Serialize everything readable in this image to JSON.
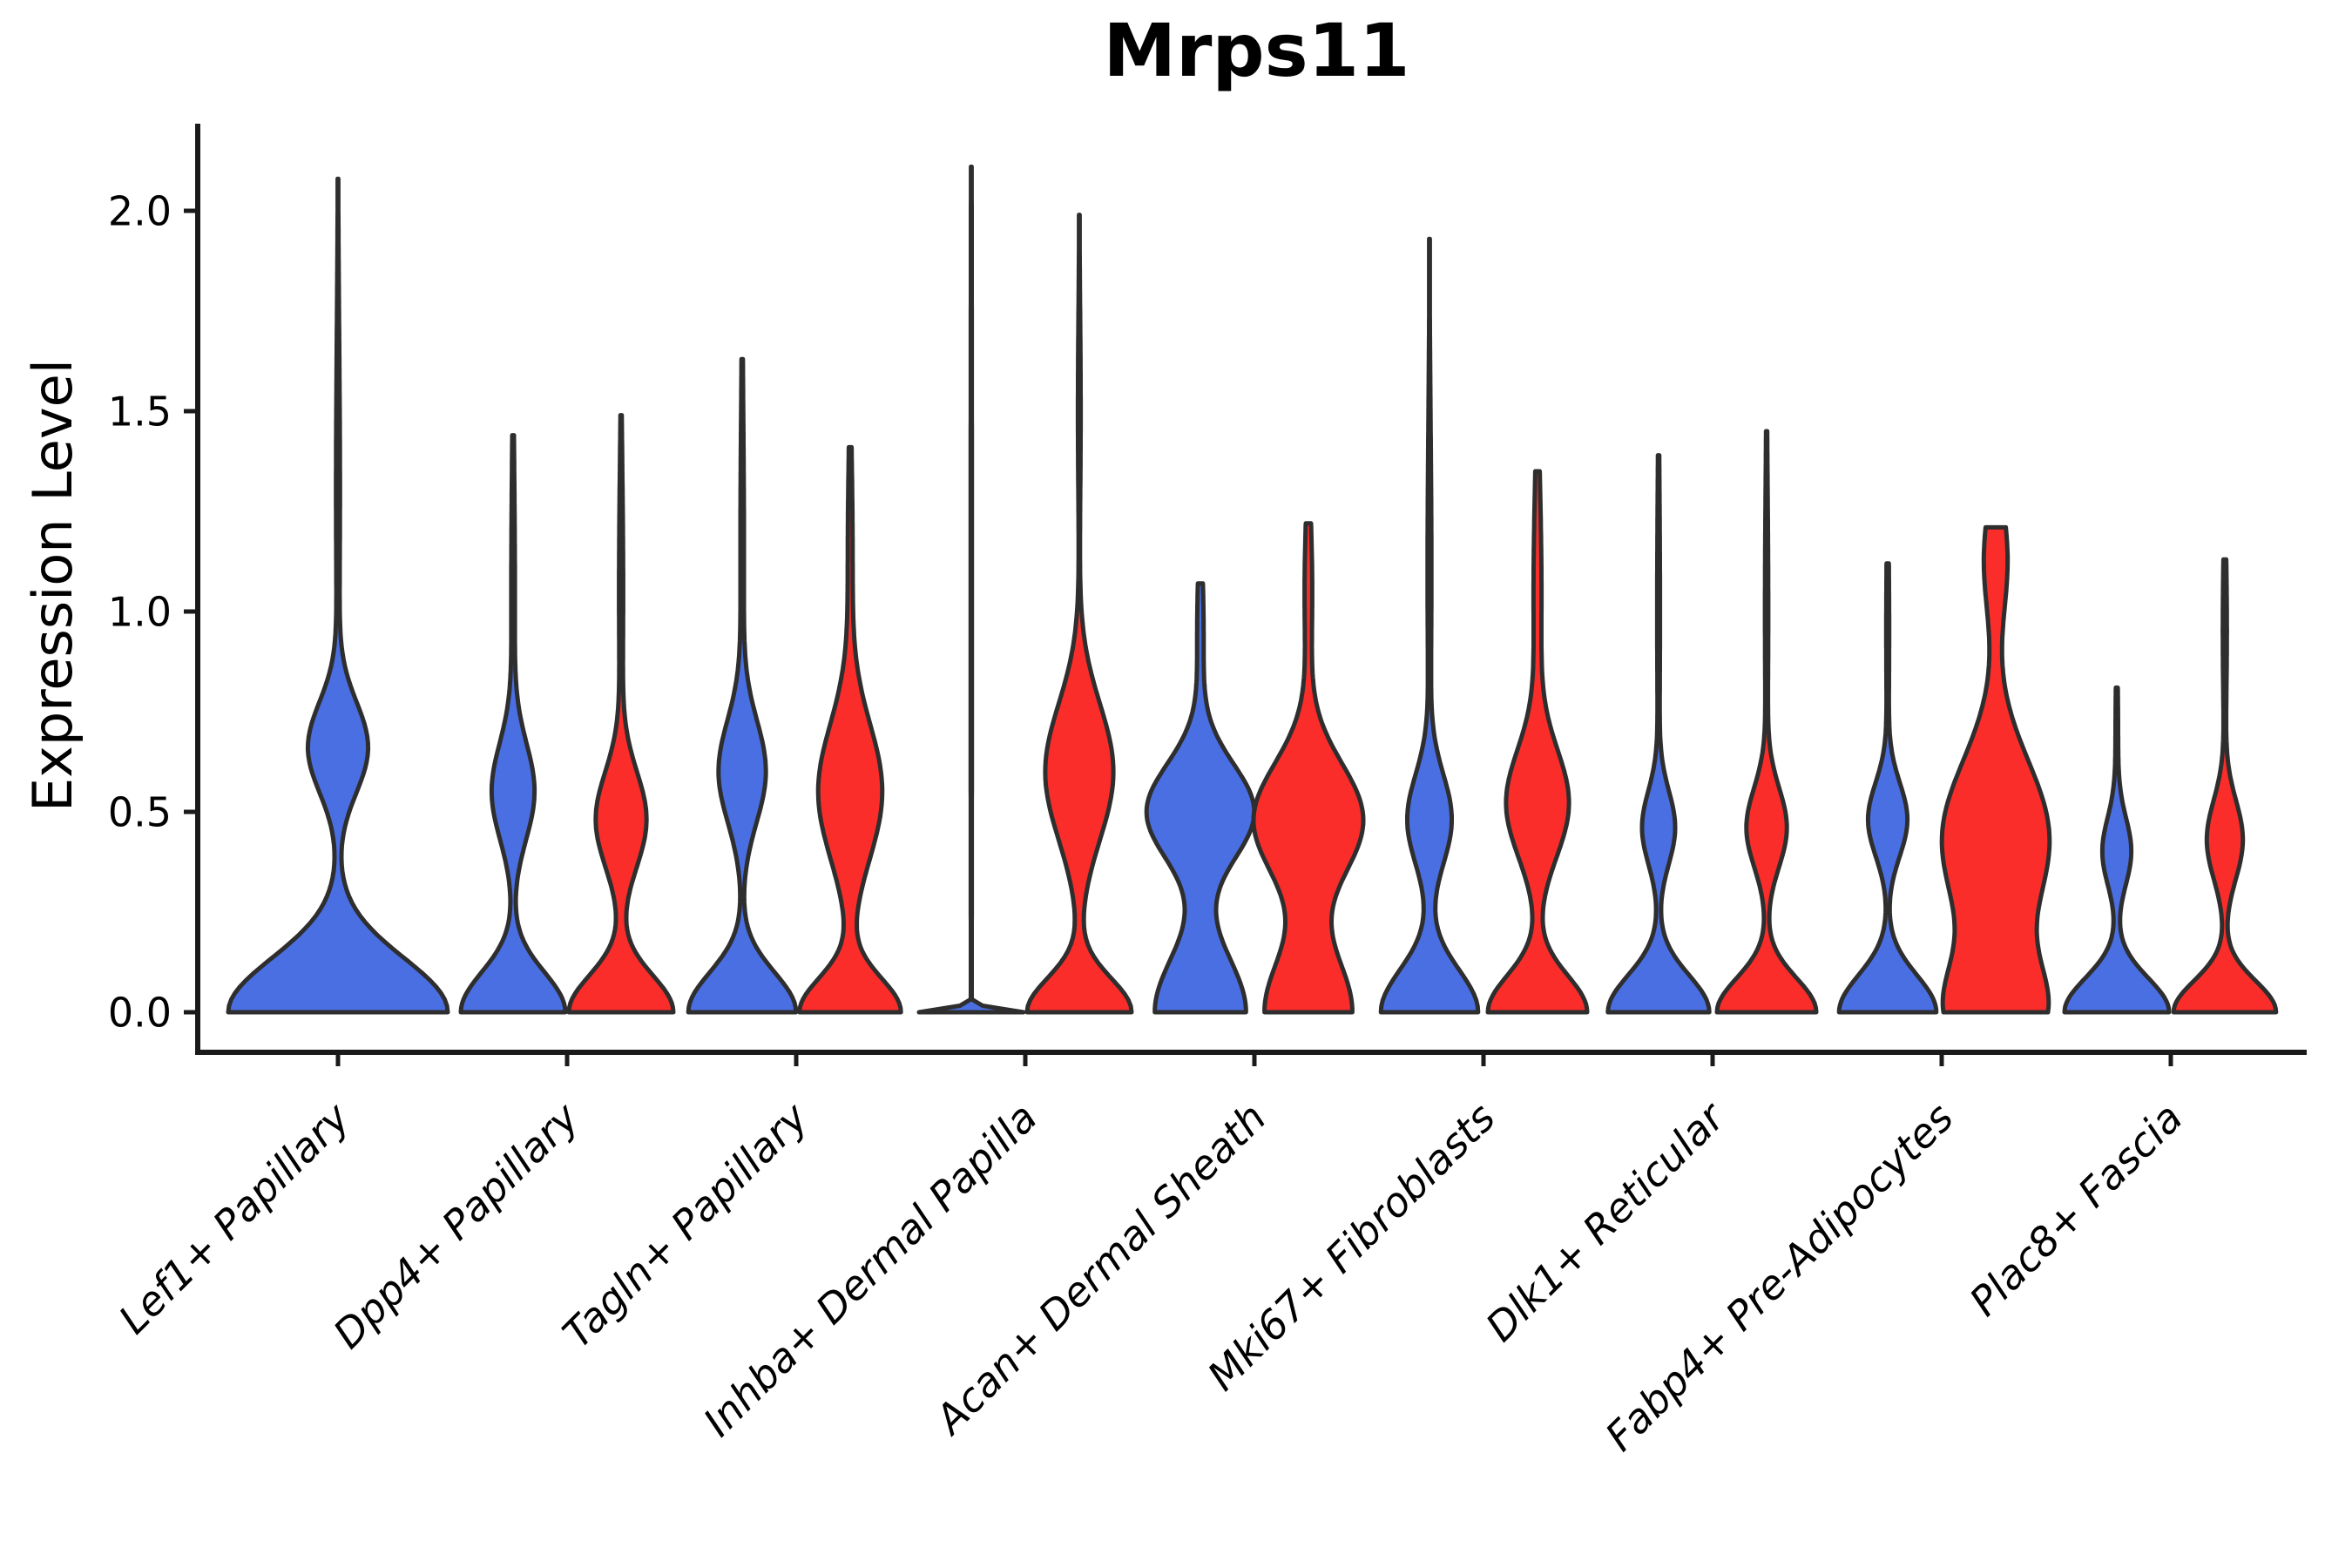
{
  "chart_data": {
    "type": "violin",
    "title": "Mrps11",
    "ylabel": "Expression Level",
    "xlabel": "",
    "ylim": [
      0,
      2.25
    ],
    "yticks": [
      0.0,
      0.5,
      1.0,
      1.5,
      2.0
    ],
    "ytick_labels": [
      "0.0",
      "0.5",
      "1.0",
      "1.5",
      "2.0"
    ],
    "grid": false,
    "legend_position": "none",
    "categories": [
      "Lef1+ Papillary",
      "Dpp4+ Papillary",
      "Tagln+ Papillary",
      "Inhba+ Dermal Papilla",
      "Acan+ Dermal Sheath",
      "Mki67+ Fibroblasts",
      "Dlk1+ Reticular",
      "Fabp4+ Pre-Adipocytes",
      "Plac8+ Fascia"
    ],
    "colors": {
      "split_blue": "#4a6fe3",
      "split_red": "#fa2d2a",
      "violin_outline": "#2e2e2e",
      "axis": "#1a1a1a",
      "text": "#000000"
    },
    "violins": [
      {
        "category_index": 0,
        "category": "Lef1+ Papillary",
        "split": "blue",
        "side": "center",
        "max_expression": 2.08,
        "rel_halfwidth": 2.1,
        "density_components": [
          [
            0,
            0.19,
            1.0
          ],
          [
            0.66,
            0.16,
            0.27
          ],
          [
            1.3,
            0.55,
            0.018
          ]
        ]
      },
      {
        "category_index": 1,
        "category": "Dpp4+ Papillary",
        "split": "blue",
        "side": "left",
        "max_expression": 1.44,
        "rel_halfwidth": 1.0,
        "density_components": [
          [
            0,
            0.14,
            1.0
          ],
          [
            0.55,
            0.17,
            0.4
          ],
          [
            1.05,
            0.45,
            0.035
          ]
        ]
      },
      {
        "category_index": 1,
        "category": "Dpp4+ Papillary",
        "split": "red",
        "side": "right",
        "max_expression": 1.49,
        "rel_halfwidth": 1.0,
        "density_components": [
          [
            0,
            0.13,
            1.0
          ],
          [
            0.48,
            0.17,
            0.48
          ],
          [
            1.05,
            0.42,
            0.04
          ]
        ]
      },
      {
        "category_index": 2,
        "category": "Tagln+ Papillary",
        "split": "blue",
        "side": "left",
        "max_expression": 1.63,
        "rel_halfwidth": 1.03,
        "density_components": [
          [
            0,
            0.14,
            1.0
          ],
          [
            0.6,
            0.18,
            0.43
          ],
          [
            1.15,
            0.5,
            0.033
          ]
        ]
      },
      {
        "category_index": 2,
        "category": "Tagln+ Papillary",
        "split": "red",
        "side": "right",
        "max_expression": 1.41,
        "rel_halfwidth": 0.97,
        "density_components": [
          [
            0,
            0.12,
            0.95
          ],
          [
            0.55,
            0.24,
            0.6
          ],
          [
            1.15,
            0.35,
            0.045
          ]
        ]
      },
      {
        "category_index": 3,
        "category": "Inhba+ Dermal Papilla",
        "split": "blue",
        "side": "left",
        "max_expression": 2.11,
        "rel_halfwidth": 1.0,
        "density_components": [
          [
            0,
            0.013,
            1.0
          ],
          [
            1.0,
            1.5,
            0.012
          ]
        ]
      },
      {
        "category_index": 3,
        "category": "Inhba+ Dermal Papilla",
        "split": "red",
        "side": "right",
        "max_expression": 1.99,
        "rel_halfwidth": 1.0,
        "density_components": [
          [
            0,
            0.12,
            0.95
          ],
          [
            0.6,
            0.24,
            0.62
          ],
          [
            1.5,
            0.35,
            0.025
          ]
        ]
      },
      {
        "category_index": 4,
        "category": "Acan+ Dermal Sheath",
        "split": "blue",
        "side": "left",
        "max_expression": 1.07,
        "rel_halfwidth": 1.03,
        "density_components": [
          [
            0,
            0.2,
            0.85
          ],
          [
            0.5,
            0.17,
            1.0
          ],
          [
            0.95,
            0.25,
            0.06
          ]
        ]
      },
      {
        "category_index": 4,
        "category": "Acan+ Dermal Sheath",
        "split": "red",
        "side": "right",
        "max_expression": 1.22,
        "rel_halfwidth": 1.05,
        "density_components": [
          [
            0,
            0.2,
            0.8
          ],
          [
            0.48,
            0.2,
            1.0
          ],
          [
            1.05,
            0.28,
            0.07
          ]
        ]
      },
      {
        "category_index": 5,
        "category": "Mki67+ Fibroblasts",
        "split": "blue",
        "side": "left",
        "max_expression": 1.93,
        "rel_halfwidth": 0.93,
        "density_components": [
          [
            0,
            0.15,
            1.0
          ],
          [
            0.48,
            0.16,
            0.45
          ],
          [
            1.1,
            0.5,
            0.04
          ]
        ]
      },
      {
        "category_index": 5,
        "category": "Mki67+ Fibroblasts",
        "split": "red",
        "side": "right",
        "max_expression": 1.35,
        "rel_halfwidth": 0.95,
        "density_components": [
          [
            0,
            0.13,
            1.0
          ],
          [
            0.52,
            0.19,
            0.62
          ],
          [
            1.05,
            0.4,
            0.08
          ]
        ]
      },
      {
        "category_index": 6,
        "category": "Dlk1+ Reticular",
        "split": "blue",
        "side": "left",
        "max_expression": 1.39,
        "rel_halfwidth": 0.97,
        "density_components": [
          [
            0,
            0.13,
            1.0
          ],
          [
            0.46,
            0.13,
            0.32
          ],
          [
            1.0,
            0.45,
            0.028
          ]
        ]
      },
      {
        "category_index": 6,
        "category": "Dlk1+ Reticular",
        "split": "red",
        "side": "right",
        "max_expression": 1.45,
        "rel_halfwidth": 0.95,
        "density_components": [
          [
            0,
            0.12,
            1.0
          ],
          [
            0.46,
            0.14,
            0.4
          ],
          [
            1.0,
            0.45,
            0.033
          ]
        ]
      },
      {
        "category_index": 7,
        "category": "Fabp4+ Pre-Adipocytes",
        "split": "blue",
        "side": "left",
        "max_expression": 1.12,
        "rel_halfwidth": 0.93,
        "density_components": [
          [
            0,
            0.13,
            1.0
          ],
          [
            0.48,
            0.13,
            0.4
          ],
          [
            0.95,
            0.35,
            0.03
          ]
        ]
      },
      {
        "category_index": 7,
        "category": "Fabp4+ Pre-Adipocytes",
        "split": "red",
        "side": "right",
        "max_expression": 1.21,
        "rel_halfwidth": 1.03,
        "density_components": [
          [
            0,
            0.18,
            0.88
          ],
          [
            0.43,
            0.28,
            1.0
          ],
          [
            1.13,
            0.2,
            0.22
          ]
        ]
      },
      {
        "category_index": 8,
        "category": "Plac8+ Fascia",
        "split": "blue",
        "side": "left",
        "max_expression": 0.81,
        "rel_halfwidth": 1.0,
        "density_components": [
          [
            0,
            0.12,
            1.0
          ],
          [
            0.4,
            0.12,
            0.27
          ],
          [
            0.68,
            0.25,
            0.025
          ]
        ]
      },
      {
        "category_index": 8,
        "category": "Plac8+ Fascia",
        "split": "red",
        "side": "right",
        "max_expression": 1.13,
        "rel_halfwidth": 0.98,
        "density_components": [
          [
            0,
            0.11,
            1.0
          ],
          [
            0.43,
            0.14,
            0.35
          ],
          [
            0.95,
            0.3,
            0.04
          ]
        ]
      }
    ]
  }
}
